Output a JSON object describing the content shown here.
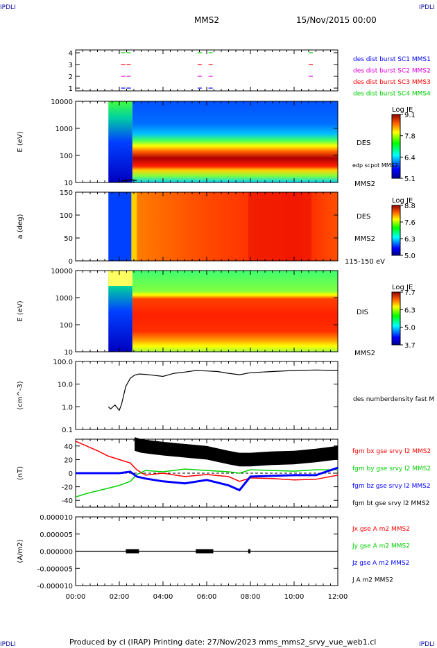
{
  "corners": {
    "tl": "IPDLI",
    "tr": "IPDLI",
    "bl": "IPDLI",
    "br": "IPDLI"
  },
  "header": {
    "title": "MMS2",
    "date": "15/Nov/2015 00:00"
  },
  "footer": "Produced by cl (IRAP)   Printing date: 27/Nov/2023   mms_mms2_srvy_vue_web1.cl",
  "colors": {
    "blue": "#0000ff",
    "magenta": "#e000e0",
    "red": "#ff0000",
    "green": "#00d000",
    "black": "#000000"
  },
  "chart_data": [
    {
      "type": "scatter",
      "panel": "burst",
      "xlim": [
        "00:00",
        "12:00"
      ],
      "yticks": [
        "4",
        "3",
        "2",
        "1"
      ],
      "series": [
        {
          "name": "des dist burst SC1 MMS1",
          "color": "#0000ff",
          "y": 1,
          "x": [
            "02:05",
            "02:20",
            "05:35",
            "06:05"
          ]
        },
        {
          "name": "des dist burst SC2 MMS2",
          "color": "#e000e0",
          "y": 2,
          "x": [
            "02:05",
            "02:20",
            "05:35",
            "06:05",
            "10:40"
          ]
        },
        {
          "name": "des dist burst SC3 MMS3",
          "color": "#ff0000",
          "y": 3,
          "x": [
            "02:05",
            "02:20",
            "05:35",
            "06:05",
            "10:40"
          ]
        },
        {
          "name": "des dist burst SC4 MMS4",
          "color": "#00d000",
          "y": 4,
          "x": [
            "02:05",
            "02:20",
            "05:35",
            "06:05",
            "10:40"
          ]
        }
      ]
    },
    {
      "type": "heatmap",
      "panel": "des_energy",
      "ylabel": "E (eV)",
      "yscale": "log",
      "ylim": [
        10,
        30000
      ],
      "yticks": [
        "10000",
        "1000",
        "100",
        "10"
      ],
      "data_start": "01:30",
      "colorbar": {
        "label": "Log JE",
        "ticks": [
          "9.1",
          "7.8",
          "6.4",
          "5.1"
        ],
        "range": [
          5.1,
          9.1
        ]
      },
      "labels": [
        "DES",
        "edp scpot MMS2",
        "MMS2"
      ]
    },
    {
      "type": "heatmap",
      "panel": "des_pitch",
      "ylabel": "a (deg)",
      "ylim": [
        0,
        180
      ],
      "yticks": [
        "150",
        "100",
        "50",
        "0"
      ],
      "data_start": "01:30",
      "colorbar": {
        "label": "Log JE",
        "ticks": [
          "8.8",
          "7.6",
          "6.3",
          "5.0"
        ],
        "range": [
          5.0,
          8.8
        ]
      },
      "labels": [
        "DES",
        "MMS2",
        "115-150 eV"
      ]
    },
    {
      "type": "heatmap",
      "panel": "dis_energy",
      "ylabel": "E (eV)",
      "yscale": "log",
      "ylim": [
        10,
        30000
      ],
      "yticks": [
        "10000",
        "1000",
        "100",
        "10"
      ],
      "data_start": "01:30",
      "colorbar": {
        "label": "Log JE",
        "ticks": [
          "7.7",
          "6.3",
          "5.0",
          "3.7"
        ],
        "range": [
          3.7,
          7.7
        ]
      },
      "labels": [
        "DIS",
        "MMS2"
      ]
    },
    {
      "type": "line",
      "panel": "density",
      "ylabel": "(cm^-3)",
      "yscale": "log",
      "ylim": [
        0.1,
        100
      ],
      "yticks": [
        "100.0",
        "10.0",
        "1.0",
        "0.1"
      ],
      "series": [
        {
          "name": "des numberdensity fast M",
          "color": "#000000",
          "x": [
            1.5,
            1.6,
            1.8,
            2.0,
            2.1,
            2.3,
            2.5,
            2.7,
            2.9,
            3.2,
            3.5,
            4.0,
            4.5,
            5.0,
            5.5,
            6.0,
            6.5,
            7.0,
            7.5,
            8.0,
            9.0,
            10.0,
            11.0,
            12.0
          ],
          "y": [
            1.0,
            0.8,
            1.2,
            0.7,
            1.3,
            8.0,
            18,
            25,
            28,
            27,
            25,
            22,
            30,
            34,
            40,
            38,
            36,
            30,
            26,
            32,
            36,
            40,
            42,
            40
          ]
        }
      ]
    },
    {
      "type": "line",
      "panel": "bfield",
      "ylabel": "(nT)",
      "ylim": [
        -50,
        50
      ],
      "yticks": [
        "40",
        "20",
        "0",
        "-20",
        "-40"
      ],
      "series": [
        {
          "name": "fgm bx gse srvy l2 MMS2",
          "color": "#ff0000",
          "x": [
            0,
            0.5,
            1.0,
            1.5,
            2.0,
            2.5,
            2.8,
            3.2,
            4.0,
            5.0,
            6.0,
            7.0,
            7.5,
            8.0,
            9.0,
            10.0,
            11.0,
            12.0
          ],
          "y": [
            47,
            40,
            33,
            25,
            20,
            15,
            5,
            -3,
            0,
            -5,
            -2,
            -5,
            -12,
            -7,
            -8,
            -10,
            -9,
            -3
          ]
        },
        {
          "name": "fgm by gse srvy l2 MMS2",
          "color": "#00d000",
          "x": [
            0,
            0.5,
            1.0,
            1.5,
            2.0,
            2.5,
            2.8,
            3.2,
            4.0,
            5.0,
            6.0,
            7.0,
            7.5,
            8.0,
            9.0,
            10.0,
            11.0,
            12.0
          ],
          "y": [
            -35,
            -30,
            -26,
            -22,
            -18,
            -12,
            -2,
            4,
            2,
            6,
            4,
            2,
            0,
            5,
            4,
            3,
            5,
            5
          ]
        },
        {
          "name": "fgm bz gse srvy l2 MMS2",
          "color": "#0000ff",
          "x": [
            0,
            0.5,
            1.0,
            1.5,
            2.0,
            2.5,
            2.8,
            3.2,
            4.0,
            5.0,
            6.0,
            7.0,
            7.5,
            8.0,
            9.0,
            10.0,
            11.0,
            12.0
          ],
          "y": [
            0,
            0,
            0,
            0,
            0,
            2,
            -5,
            -8,
            -12,
            -15,
            -10,
            -18,
            -25,
            -5,
            -4,
            -3,
            -3,
            8
          ]
        },
        {
          "name": "fgm bt gse srvy l2 MMS2",
          "color": "#000000",
          "x": [
            2.7,
            3.0,
            3.5,
            4.0,
            5.0,
            6.0,
            7.0,
            7.5,
            8.0,
            9.0,
            10.0,
            11.0,
            12.0
          ],
          "y": [
            45,
            42,
            40,
            38,
            35,
            32,
            25,
            22,
            22,
            24,
            25,
            28,
            32
          ]
        }
      ]
    },
    {
      "type": "line",
      "panel": "current",
      "ylabel": "(A/m2)",
      "ylim": [
        -0.0001,
        0.0001
      ],
      "yticks": [
        "0.000010",
        "0.000005",
        "0.000000",
        "-0.000005",
        "-0.000010"
      ],
      "series": [
        {
          "name": "Jx gse A m2 MMS2",
          "color": "#ff0000"
        },
        {
          "name": "Jy gse A m2 MMS2",
          "color": "#00d000"
        },
        {
          "name": "Jz gse A m2 MMS2",
          "color": "#0000ff"
        },
        {
          "name": "J A m2 MMS2",
          "color": "#000000"
        }
      ]
    }
  ],
  "xaxis": {
    "ticks": [
      "00:00",
      "02:00",
      "04:00",
      "06:00",
      "08:00",
      "10:00",
      "12:00"
    ]
  }
}
